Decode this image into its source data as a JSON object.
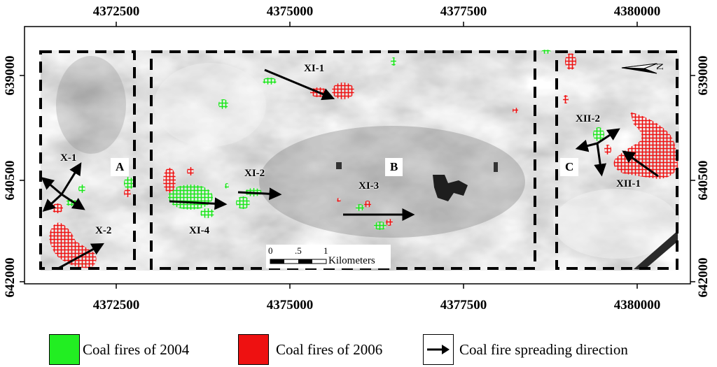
{
  "map": {
    "x_ticks": [
      "4372500",
      "4375000",
      "4377500",
      "4380000"
    ],
    "y_ticks": [
      "639000",
      "640500",
      "642000"
    ],
    "zones": [
      "A",
      "B",
      "C"
    ],
    "fire_labels": [
      "X-1",
      "X-2",
      "XI-1",
      "XI-2",
      "XI-3",
      "XI-4",
      "XII-1",
      "XII-2"
    ],
    "scale_bar": {
      "ticks": [
        "0",
        ".5",
        "1"
      ],
      "unit": "Kilometers"
    },
    "north_arrow_letter": "N",
    "colors": {
      "fire_2004": "#22ee22",
      "fire_2006": "#ee1111",
      "arrow": "#000000"
    }
  },
  "legend": {
    "fire_2004": "Coal fires of 2004",
    "fire_2006": "Coal fires of 2006",
    "spreading": "Coal fire spreading direction"
  }
}
